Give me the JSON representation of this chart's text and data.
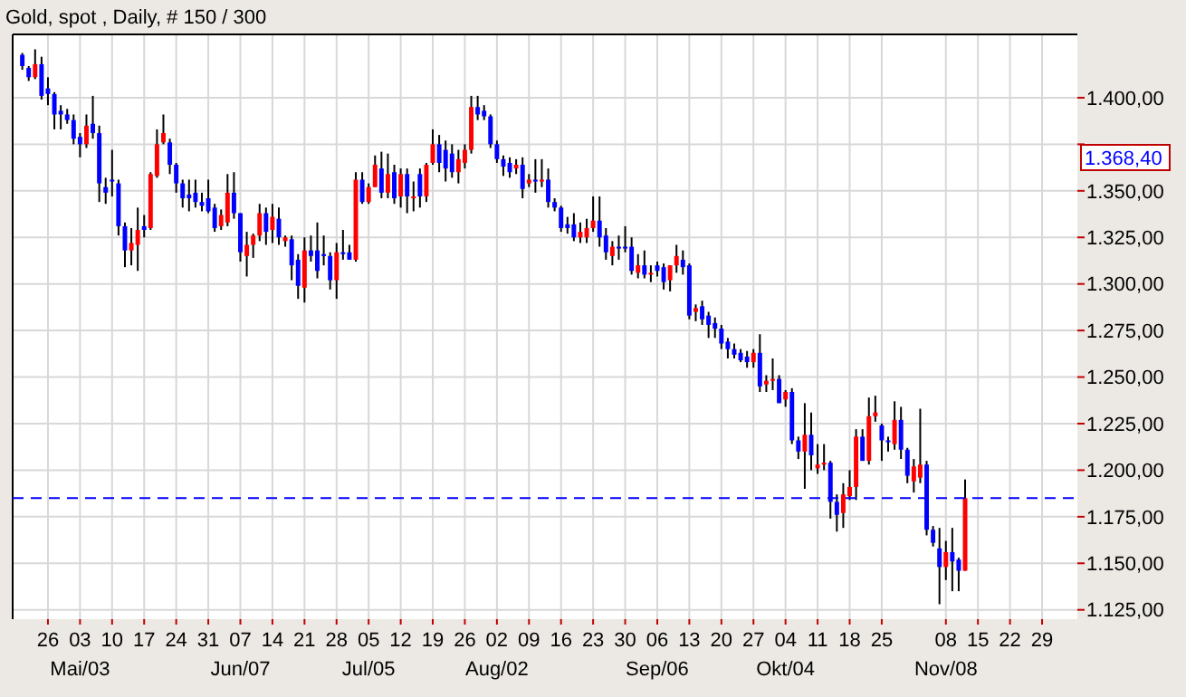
{
  "chart_data": {
    "type": "candlestick",
    "title": "Gold, spot , Daily, # 150 / 300",
    "categories": [
      null,
      null,
      null,
      null,
      null,
      "26",
      null,
      null,
      null,
      null,
      "03\nMai/03",
      null,
      null,
      null,
      null,
      "10",
      null,
      null,
      null,
      null,
      "17",
      null,
      null,
      null,
      null,
      "24",
      null,
      null,
      null,
      null,
      "31",
      null,
      null,
      null,
      null,
      "07\nJun/07",
      null,
      null,
      null,
      null,
      "14",
      null,
      null,
      null,
      null,
      "21",
      null,
      null,
      null,
      null,
      "28",
      null,
      null,
      null,
      null,
      "05\nJul/05",
      null,
      null,
      null,
      null,
      "12",
      null,
      null,
      null,
      null,
      "19",
      null,
      null,
      null,
      null,
      "26",
      null,
      null,
      null,
      null,
      "02\nAug/02",
      null,
      null,
      null,
      null,
      "09",
      null,
      null,
      null,
      null,
      "16",
      null,
      null,
      null,
      null,
      "23",
      null,
      null,
      null,
      null,
      "30",
      null,
      null,
      null,
      null,
      "06\nSep/06",
      null,
      null,
      null,
      null,
      "13",
      null,
      null,
      null,
      null,
      "20",
      null,
      null,
      null,
      null,
      "27",
      null,
      null,
      null,
      null,
      "04\nOkt/04",
      null,
      null,
      null,
      null,
      "11",
      null,
      null,
      null,
      null,
      "18",
      null,
      null,
      null,
      null,
      "25",
      null,
      null,
      null,
      null,
      null,
      null,
      null,
      null,
      null,
      "08\nNov/08",
      null,
      null,
      null,
      null,
      "15",
      null,
      null,
      null,
      null,
      "22",
      null,
      null,
      null,
      null,
      "29",
      null,
      null,
      null,
      null,
      null
    ],
    "ohlc": [
      null,
      [
        1423,
        1424,
        1415,
        1417
      ],
      [
        1416,
        1417,
        1409,
        1411
      ],
      [
        1411,
        1426,
        1410,
        1418
      ],
      [
        1418,
        1422,
        1399,
        1401
      ],
      [
        1405,
        1411,
        1396,
        1402
      ],
      [
        1402,
        1403,
        1383,
        1391
      ],
      [
        1393,
        1396,
        1383,
        1391
      ],
      [
        1391,
        1394,
        1386,
        1388
      ],
      [
        1388,
        1391,
        1375,
        1378
      ],
      [
        1379,
        1381,
        1368,
        1375
      ],
      [
        1375,
        1391,
        1373,
        1385
      ],
      [
        1386,
        1401,
        1378,
        1381
      ],
      [
        1381,
        1385,
        1344,
        1354
      ],
      [
        1352,
        1357,
        1343,
        1349
      ],
      [
        1356,
        1372,
        1347,
        1355
      ],
      [
        1354,
        1356,
        1326,
        1331
      ],
      [
        1331,
        1333,
        1309,
        1318
      ],
      [
        1318,
        1330,
        1310,
        1322
      ],
      [
        1321,
        1341,
        1307,
        1329
      ],
      [
        1331,
        1337,
        1325,
        1329
      ],
      [
        1330,
        1360,
        1329,
        1359
      ],
      [
        1358,
        1383,
        1357,
        1375
      ],
      [
        1376,
        1391,
        1375,
        1381
      ],
      [
        1376,
        1378,
        1359,
        1364
      ],
      [
        1364,
        1365,
        1349,
        1354
      ],
      [
        1354,
        1356,
        1341,
        1346
      ],
      [
        1348,
        1356,
        1339,
        1346
      ],
      [
        1349,
        1356,
        1341,
        1344
      ],
      [
        1344,
        1349,
        1339,
        1342
      ],
      [
        1346,
        1356,
        1338,
        1339
      ],
      [
        1341,
        1343,
        1328,
        1330
      ],
      [
        1331,
        1340,
        1329,
        1337
      ],
      [
        1333,
        1359,
        1331,
        1349
      ],
      [
        1349,
        1360,
        1335,
        1338
      ],
      [
        1338,
        1338,
        1312,
        1317
      ],
      [
        1315,
        1328,
        1304,
        1321
      ],
      [
        1321,
        1327,
        1314,
        1326
      ],
      [
        1326,
        1343,
        1323,
        1338
      ],
      [
        1338,
        1341,
        1321,
        1328
      ],
      [
        1329,
        1343,
        1322,
        1336
      ],
      [
        1335,
        1341,
        1321,
        1325
      ],
      [
        1323,
        1326,
        1320,
        1325
      ],
      [
        1324,
        1326,
        1302,
        1310
      ],
      [
        1313,
        1316,
        1292,
        1299
      ],
      [
        1298,
        1325,
        1290,
        1318
      ],
      [
        1318,
        1326,
        1312,
        1315
      ],
      [
        1318,
        1333,
        1303,
        1307
      ],
      [
        1316,
        1326,
        1310,
        1315
      ],
      [
        1315,
        1317,
        1297,
        1302
      ],
      [
        1302,
        1322,
        1292,
        1317
      ],
      [
        1317,
        1329,
        1313,
        1316
      ],
      [
        1317,
        1321,
        1313,
        1313
      ],
      [
        1313,
        1360,
        1312,
        1356
      ],
      [
        1356,
        1360,
        1343,
        1344
      ],
      [
        1344,
        1354,
        1343,
        1352
      ],
      [
        1352,
        1369,
        1352,
        1364
      ],
      [
        1362,
        1371,
        1346,
        1349
      ],
      [
        1349,
        1370,
        1346,
        1359
      ],
      [
        1360,
        1364,
        1343,
        1346
      ],
      [
        1347,
        1362,
        1341,
        1359
      ],
      [
        1359,
        1362,
        1338,
        1347
      ],
      [
        1346,
        1355,
        1339,
        1347
      ],
      [
        1359,
        1362,
        1341,
        1347
      ],
      [
        1347,
        1365,
        1344,
        1364
      ],
      [
        1365,
        1383,
        1364,
        1375
      ],
      [
        1375,
        1380,
        1360,
        1365
      ],
      [
        1372,
        1377,
        1355,
        1362
      ],
      [
        1370,
        1375,
        1357,
        1360
      ],
      [
        1360,
        1372,
        1354,
        1367
      ],
      [
        1365,
        1375,
        1362,
        1372
      ],
      [
        1372,
        1401,
        1370,
        1395
      ],
      [
        1395,
        1401,
        1388,
        1391
      ],
      [
        1393,
        1396,
        1388,
        1390
      ],
      [
        1390,
        1391,
        1373,
        1375
      ],
      [
        1375,
        1377,
        1365,
        1367
      ],
      [
        1367,
        1369,
        1358,
        1363
      ],
      [
        1365,
        1368,
        1357,
        1360
      ],
      [
        1362,
        1367,
        1359,
        1364
      ],
      [
        1364,
        1368,
        1346,
        1351
      ],
      [
        1354,
        1359,
        1352,
        1356
      ],
      [
        1356,
        1367,
        1349,
        1355
      ],
      [
        1355,
        1367,
        1352,
        1356
      ],
      [
        1356,
        1362,
        1341,
        1344
      ],
      [
        1344,
        1346,
        1339,
        1341
      ],
      [
        1341,
        1342,
        1328,
        1330
      ],
      [
        1332,
        1336,
        1327,
        1330
      ],
      [
        1332,
        1338,
        1323,
        1325
      ],
      [
        1325,
        1333,
        1322,
        1328
      ],
      [
        1325,
        1335,
        1322,
        1330
      ],
      [
        1330,
        1347,
        1328,
        1334
      ],
      [
        1334,
        1347,
        1320,
        1325
      ],
      [
        1326,
        1330,
        1313,
        1317
      ],
      [
        1315,
        1323,
        1310,
        1320
      ],
      [
        1320,
        1326,
        1313,
        1319
      ],
      [
        1320,
        1331,
        1317,
        1319
      ],
      [
        1320,
        1325,
        1305,
        1307
      ],
      [
        1306,
        1316,
        1303,
        1310
      ],
      [
        1310,
        1318,
        1303,
        1305
      ],
      [
        1305,
        1310,
        1301,
        1306
      ],
      [
        1310,
        1312,
        1304,
        1307
      ],
      [
        1309,
        1311,
        1297,
        1301
      ],
      [
        1302,
        1310,
        1296,
        1310
      ],
      [
        1310,
        1321,
        1306,
        1315
      ],
      [
        1313,
        1318,
        1305,
        1309
      ],
      [
        1310,
        1311,
        1281,
        1283
      ],
      [
        1285,
        1289,
        1280,
        1287
      ],
      [
        1288,
        1291,
        1278,
        1281
      ],
      [
        1283,
        1285,
        1271,
        1278
      ],
      [
        1279,
        1282,
        1271,
        1276
      ],
      [
        1276,
        1278,
        1265,
        1268
      ],
      [
        1269,
        1271,
        1260,
        1265
      ],
      [
        1265,
        1268,
        1260,
        1262
      ],
      [
        1263,
        1265,
        1258,
        1259
      ],
      [
        1261,
        1264,
        1255,
        1258
      ],
      [
        1258,
        1265,
        1255,
        1263
      ],
      [
        1263,
        1273,
        1242,
        1245
      ],
      [
        1246,
        1251,
        1242,
        1248
      ],
      [
        1248,
        1260,
        1243,
        1249
      ],
      [
        1249,
        1251,
        1236,
        1236
      ],
      [
        1238,
        1243,
        1234,
        1242
      ],
      [
        1242,
        1244,
        1214,
        1216
      ],
      [
        1216,
        1218,
        1206,
        1210
      ],
      [
        1210,
        1236,
        1190,
        1219
      ],
      [
        1219,
        1231,
        1200,
        1208
      ],
      [
        1201,
        1214,
        1198,
        1203
      ],
      [
        1203,
        1214,
        1200,
        1204
      ],
      [
        1204,
        1205,
        1174,
        1183
      ],
      [
        1183,
        1187,
        1167,
        1176
      ],
      [
        1177,
        1193,
        1169,
        1187
      ],
      [
        1186,
        1200,
        1184,
        1191
      ],
      [
        1191,
        1222,
        1184,
        1218
      ],
      [
        1218,
        1222,
        1205,
        1205
      ],
      [
        1205,
        1239,
        1203,
        1229
      ],
      [
        1229,
        1240,
        1226,
        1231
      ],
      [
        1224,
        1225,
        1205,
        1216
      ],
      [
        1216,
        1218,
        1210,
        1215
      ],
      [
        1214,
        1237,
        1211,
        1227
      ],
      [
        1227,
        1234,
        1206,
        1211
      ],
      [
        1211,
        1212,
        1193,
        1197
      ],
      [
        1194,
        1206,
        1188,
        1202
      ],
      [
        1196,
        1233,
        1193,
        1203
      ],
      [
        1203,
        1205,
        1165,
        1168
      ],
      [
        1168,
        1170,
        1159,
        1161
      ],
      [
        1158,
        1169,
        1128,
        1148
      ],
      [
        1148,
        1162,
        1141,
        1156
      ],
      [
        1156,
        1169,
        1135,
        1151
      ],
      [
        1152,
        1153,
        1135,
        1146
      ],
      [
        1146,
        1195,
        1146,
        1185
      ],
      null,
      null,
      null,
      null,
      null,
      null,
      null,
      null,
      null,
      null,
      null,
      null,
      null,
      null,
      null,
      null,
      null
    ],
    "ylim": [
      1120,
      1434
    ],
    "yticks": [
      {
        "value": 1125,
        "label": "1.125,00"
      },
      {
        "value": 1150,
        "label": "1.150,00"
      },
      {
        "value": 1175,
        "label": "1.175,00"
      },
      {
        "value": 1200,
        "label": "1.200,00"
      },
      {
        "value": 1225,
        "label": "1.225,00"
      },
      {
        "value": 1250,
        "label": "1.250,00"
      },
      {
        "value": 1275,
        "label": "1.275,00"
      },
      {
        "value": 1300,
        "label": "1.300,00"
      },
      {
        "value": 1325,
        "label": "1.325,00"
      },
      {
        "value": 1350,
        "label": "1.350,00"
      },
      {
        "value": 1375,
        "label": null
      },
      {
        "value": 1400,
        "label": "1.400,00"
      }
    ],
    "grid": true,
    "ref_lines": [
      {
        "axis": "y",
        "value": 1185,
        "color": "#0000ff",
        "line_style": "dashed"
      }
    ],
    "annotations": [
      "1.368,40"
    ]
  }
}
